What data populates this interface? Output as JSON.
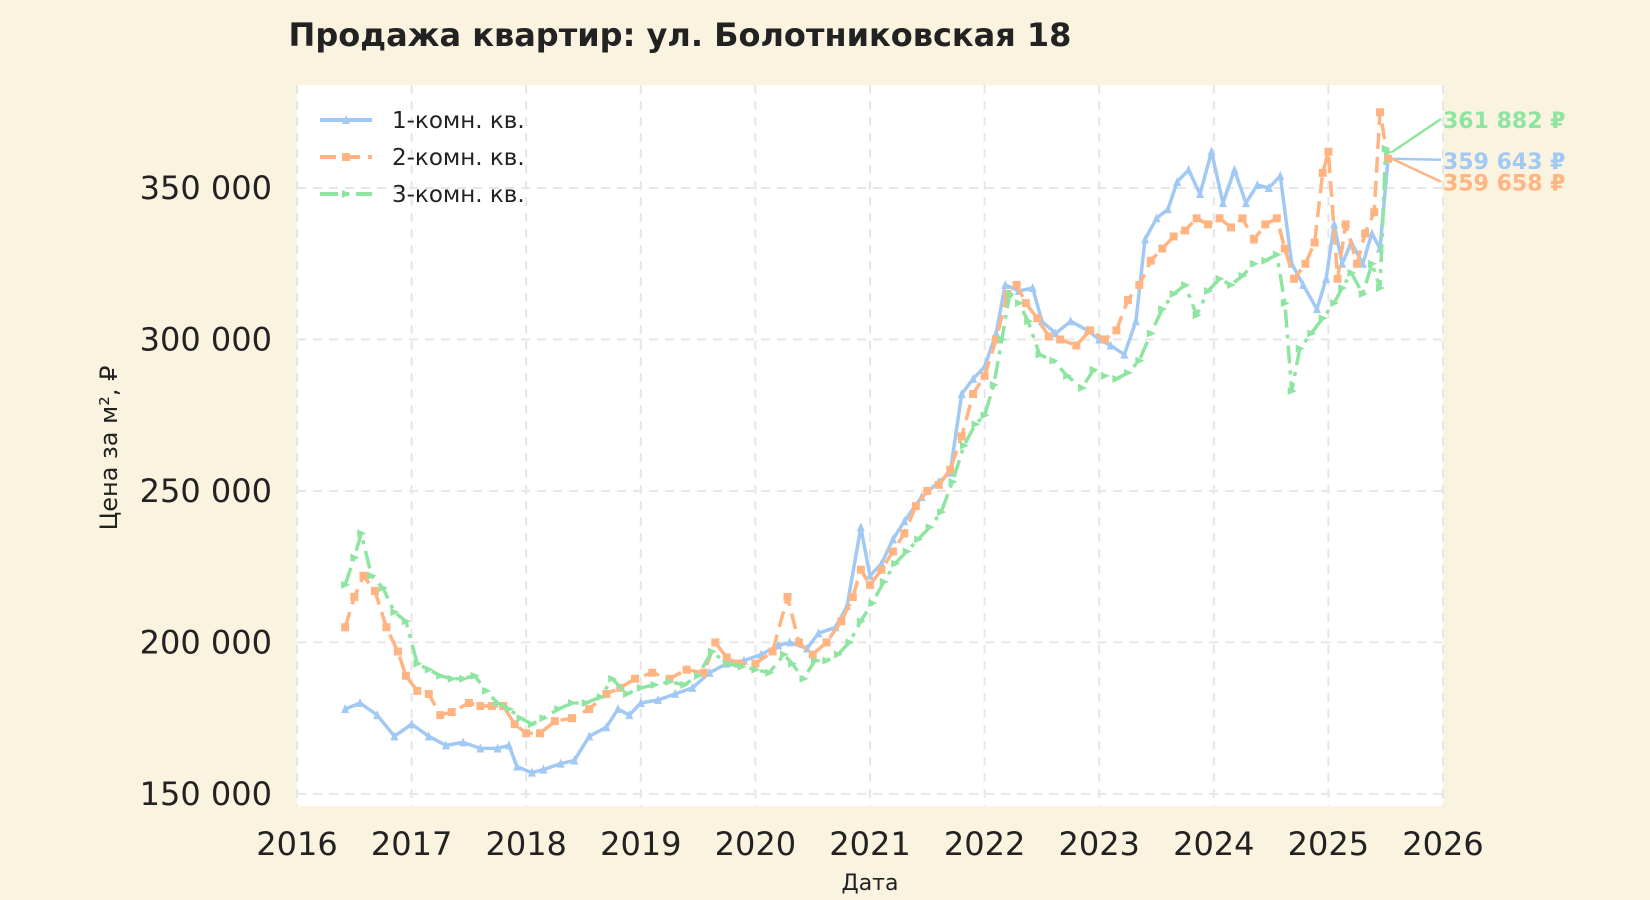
{
  "chart_data": {
    "type": "line",
    "title": "Продажа квартир: ул. Болотниковская 18",
    "xlabel": "Дата",
    "ylabel": "Цена за м², ₽",
    "xlim": [
      2016,
      2026
    ],
    "ylim": [
      146000,
      384000
    ],
    "x_ticks": [
      "2016",
      "2017",
      "2018",
      "2019",
      "2020",
      "2021",
      "2022",
      "2023",
      "2024",
      "2025",
      "2026"
    ],
    "y_ticks": [
      {
        "value": 150000,
        "label": "150 000"
      },
      {
        "value": 200000,
        "label": "200 000"
      },
      {
        "value": 250000,
        "label": "250 000"
      },
      {
        "value": 300000,
        "label": "300 000"
      },
      {
        "value": 350000,
        "label": "350 000"
      }
    ],
    "grid": true,
    "legend_position": "top-left",
    "plot_background": "#ffffff",
    "page_background": "#faf3e0",
    "series": [
      {
        "name": "1-комн. кв.",
        "color": "#a1c9f4",
        "dash": "solid",
        "marker": "triangle-up",
        "last_value_label": "359 643 ₽",
        "points": [
          [
            2016.42,
            178000
          ],
          [
            2016.55,
            180000
          ],
          [
            2016.7,
            176000
          ],
          [
            2016.85,
            169000
          ],
          [
            2017.0,
            173000
          ],
          [
            2017.15,
            169000
          ],
          [
            2017.3,
            166000
          ],
          [
            2017.45,
            167000
          ],
          [
            2017.6,
            165000
          ],
          [
            2017.75,
            165000
          ],
          [
            2017.85,
            166000
          ],
          [
            2017.92,
            159000
          ],
          [
            2018.05,
            157000
          ],
          [
            2018.15,
            158000
          ],
          [
            2018.3,
            160000
          ],
          [
            2018.42,
            161000
          ],
          [
            2018.55,
            169000
          ],
          [
            2018.7,
            172000
          ],
          [
            2018.8,
            178000
          ],
          [
            2018.9,
            176000
          ],
          [
            2019.0,
            180000
          ],
          [
            2019.15,
            181000
          ],
          [
            2019.3,
            183000
          ],
          [
            2019.45,
            185000
          ],
          [
            2019.6,
            190000
          ],
          [
            2019.75,
            193000
          ],
          [
            2019.9,
            194000
          ],
          [
            2020.05,
            196000
          ],
          [
            2020.2,
            199000
          ],
          [
            2020.3,
            200000
          ],
          [
            2020.45,
            198000
          ],
          [
            2020.55,
            203000
          ],
          [
            2020.7,
            205000
          ],
          [
            2020.8,
            212000
          ],
          [
            2020.92,
            238000
          ],
          [
            2021.0,
            222000
          ],
          [
            2021.1,
            226000
          ],
          [
            2021.2,
            234000
          ],
          [
            2021.3,
            240000
          ],
          [
            2021.45,
            248000
          ],
          [
            2021.6,
            253000
          ],
          [
            2021.7,
            256000
          ],
          [
            2021.8,
            282000
          ],
          [
            2021.9,
            287000
          ],
          [
            2022.0,
            291000
          ],
          [
            2022.1,
            302000
          ],
          [
            2022.18,
            318000
          ],
          [
            2022.3,
            316000
          ],
          [
            2022.42,
            317000
          ],
          [
            2022.5,
            306000
          ],
          [
            2022.62,
            302000
          ],
          [
            2022.75,
            306000
          ],
          [
            2022.9,
            303000
          ],
          [
            2023.0,
            300000
          ],
          [
            2023.1,
            298000
          ],
          [
            2023.22,
            295000
          ],
          [
            2023.32,
            306000
          ],
          [
            2023.4,
            333000
          ],
          [
            2023.5,
            340000
          ],
          [
            2023.6,
            343000
          ],
          [
            2023.68,
            352000
          ],
          [
            2023.78,
            356000
          ],
          [
            2023.88,
            348000
          ],
          [
            2023.98,
            362000
          ],
          [
            2024.08,
            345000
          ],
          [
            2024.18,
            356000
          ],
          [
            2024.28,
            345000
          ],
          [
            2024.38,
            351000
          ],
          [
            2024.48,
            350000
          ],
          [
            2024.58,
            354000
          ],
          [
            2024.68,
            325000
          ],
          [
            2024.78,
            318000
          ],
          [
            2024.9,
            310000
          ],
          [
            2024.98,
            320000
          ],
          [
            2025.05,
            338000
          ],
          [
            2025.12,
            325000
          ],
          [
            2025.2,
            332000
          ],
          [
            2025.3,
            325000
          ],
          [
            2025.38,
            335000
          ],
          [
            2025.45,
            330000
          ],
          [
            2025.52,
            359643
          ]
        ]
      },
      {
        "name": "2-комн. кв.",
        "color": "#ffb482",
        "dash": "dashed",
        "marker": "square",
        "last_value_label": "359 658 ₽",
        "points": [
          [
            2016.42,
            205000
          ],
          [
            2016.5,
            215000
          ],
          [
            2016.58,
            222000
          ],
          [
            2016.68,
            217000
          ],
          [
            2016.78,
            205000
          ],
          [
            2016.88,
            197000
          ],
          [
            2016.95,
            189000
          ],
          [
            2017.05,
            184000
          ],
          [
            2017.15,
            183000
          ],
          [
            2017.25,
            176000
          ],
          [
            2017.35,
            177000
          ],
          [
            2017.5,
            180000
          ],
          [
            2017.6,
            179000
          ],
          [
            2017.7,
            179000
          ],
          [
            2017.8,
            179000
          ],
          [
            2017.9,
            173000
          ],
          [
            2018.0,
            170000
          ],
          [
            2018.12,
            170000
          ],
          [
            2018.25,
            174000
          ],
          [
            2018.4,
            175000
          ],
          [
            2018.55,
            178000
          ],
          [
            2018.7,
            183000
          ],
          [
            2018.82,
            185000
          ],
          [
            2018.95,
            188000
          ],
          [
            2019.1,
            190000
          ],
          [
            2019.25,
            188000
          ],
          [
            2019.4,
            191000
          ],
          [
            2019.55,
            190000
          ],
          [
            2019.65,
            200000
          ],
          [
            2019.75,
            195000
          ],
          [
            2019.85,
            193000
          ],
          [
            2020.0,
            193000
          ],
          [
            2020.15,
            197000
          ],
          [
            2020.28,
            215000
          ],
          [
            2020.38,
            200000
          ],
          [
            2020.5,
            196000
          ],
          [
            2020.62,
            200000
          ],
          [
            2020.75,
            207000
          ],
          [
            2020.85,
            215000
          ],
          [
            2020.92,
            224000
          ],
          [
            2021.0,
            219000
          ],
          [
            2021.1,
            224000
          ],
          [
            2021.2,
            230000
          ],
          [
            2021.3,
            236000
          ],
          [
            2021.4,
            245000
          ],
          [
            2021.5,
            250000
          ],
          [
            2021.6,
            252000
          ],
          [
            2021.7,
            257000
          ],
          [
            2021.8,
            268000
          ],
          [
            2021.9,
            282000
          ],
          [
            2022.0,
            288000
          ],
          [
            2022.1,
            300000
          ],
          [
            2022.2,
            315000
          ],
          [
            2022.28,
            318000
          ],
          [
            2022.36,
            312000
          ],
          [
            2022.46,
            307000
          ],
          [
            2022.56,
            301000
          ],
          [
            2022.66,
            300000
          ],
          [
            2022.8,
            298000
          ],
          [
            2022.92,
            303000
          ],
          [
            2023.05,
            300000
          ],
          [
            2023.15,
            303000
          ],
          [
            2023.25,
            313000
          ],
          [
            2023.35,
            318000
          ],
          [
            2023.45,
            326000
          ],
          [
            2023.55,
            330000
          ],
          [
            2023.65,
            334000
          ],
          [
            2023.75,
            336000
          ],
          [
            2023.85,
            340000
          ],
          [
            2023.95,
            338000
          ],
          [
            2024.05,
            340000
          ],
          [
            2024.15,
            337000
          ],
          [
            2024.25,
            340000
          ],
          [
            2024.35,
            333000
          ],
          [
            2024.45,
            338000
          ],
          [
            2024.55,
            340000
          ],
          [
            2024.62,
            330000
          ],
          [
            2024.7,
            320000
          ],
          [
            2024.8,
            325000
          ],
          [
            2024.88,
            332000
          ],
          [
            2024.95,
            355000
          ],
          [
            2025.0,
            362000
          ],
          [
            2025.08,
            320000
          ],
          [
            2025.15,
            338000
          ],
          [
            2025.25,
            325000
          ],
          [
            2025.32,
            335000
          ],
          [
            2025.4,
            342000
          ],
          [
            2025.45,
            375000
          ],
          [
            2025.52,
            359658
          ]
        ]
      },
      {
        "name": "3-комн. кв.",
        "color": "#8de5a1",
        "dash": "dashdot",
        "marker": "triangle-right",
        "last_value_label": "361 882 ₽",
        "points": [
          [
            2016.42,
            219000
          ],
          [
            2016.5,
            228000
          ],
          [
            2016.56,
            236000
          ],
          [
            2016.65,
            222000
          ],
          [
            2016.75,
            218000
          ],
          [
            2016.85,
            210000
          ],
          [
            2016.95,
            207000
          ],
          [
            2017.05,
            193000
          ],
          [
            2017.15,
            191000
          ],
          [
            2017.25,
            189000
          ],
          [
            2017.35,
            188000
          ],
          [
            2017.45,
            188000
          ],
          [
            2017.55,
            189000
          ],
          [
            2017.65,
            184000
          ],
          [
            2017.75,
            180000
          ],
          [
            2017.85,
            178000
          ],
          [
            2017.95,
            175000
          ],
          [
            2018.05,
            173000
          ],
          [
            2018.15,
            175000
          ],
          [
            2018.28,
            178000
          ],
          [
            2018.4,
            180000
          ],
          [
            2018.52,
            180000
          ],
          [
            2018.65,
            182000
          ],
          [
            2018.75,
            188000
          ],
          [
            2018.88,
            183000
          ],
          [
            2019.0,
            185000
          ],
          [
            2019.12,
            186000
          ],
          [
            2019.25,
            187000
          ],
          [
            2019.38,
            186000
          ],
          [
            2019.5,
            189000
          ],
          [
            2019.62,
            197000
          ],
          [
            2019.75,
            193000
          ],
          [
            2019.88,
            192000
          ],
          [
            2020.0,
            191000
          ],
          [
            2020.12,
            190000
          ],
          [
            2020.25,
            196000
          ],
          [
            2020.32,
            193000
          ],
          [
            2020.42,
            188000
          ],
          [
            2020.52,
            194000
          ],
          [
            2020.62,
            194000
          ],
          [
            2020.72,
            196000
          ],
          [
            2020.82,
            200000
          ],
          [
            2020.92,
            207000
          ],
          [
            2021.02,
            213000
          ],
          [
            2021.12,
            220000
          ],
          [
            2021.22,
            226000
          ],
          [
            2021.32,
            230000
          ],
          [
            2021.42,
            234000
          ],
          [
            2021.52,
            238000
          ],
          [
            2021.62,
            243000
          ],
          [
            2021.72,
            253000
          ],
          [
            2021.82,
            265000
          ],
          [
            2021.92,
            272000
          ],
          [
            2022.0,
            275000
          ],
          [
            2022.08,
            285000
          ],
          [
            2022.15,
            300000
          ],
          [
            2022.22,
            315000
          ],
          [
            2022.3,
            312000
          ],
          [
            2022.38,
            306000
          ],
          [
            2022.48,
            295000
          ],
          [
            2022.6,
            293000
          ],
          [
            2022.72,
            288000
          ],
          [
            2022.85,
            284000
          ],
          [
            2022.95,
            290000
          ],
          [
            2023.05,
            288000
          ],
          [
            2023.15,
            287000
          ],
          [
            2023.25,
            289000
          ],
          [
            2023.35,
            293000
          ],
          [
            2023.45,
            302000
          ],
          [
            2023.55,
            310000
          ],
          [
            2023.65,
            315000
          ],
          [
            2023.75,
            318000
          ],
          [
            2023.85,
            308000
          ],
          [
            2023.95,
            316000
          ],
          [
            2024.05,
            320000
          ],
          [
            2024.15,
            318000
          ],
          [
            2024.25,
            321000
          ],
          [
            2024.35,
            325000
          ],
          [
            2024.45,
            326000
          ],
          [
            2024.55,
            328000
          ],
          [
            2024.62,
            312000
          ],
          [
            2024.68,
            283000
          ],
          [
            2024.75,
            297000
          ],
          [
            2024.85,
            302000
          ],
          [
            2024.95,
            307000
          ],
          [
            2025.05,
            312000
          ],
          [
            2025.12,
            317000
          ],
          [
            2025.2,
            322000
          ],
          [
            2025.3,
            315000
          ],
          [
            2025.38,
            325000
          ],
          [
            2025.45,
            317000
          ],
          [
            2025.5,
            363000
          ],
          [
            2025.52,
            361882
          ]
        ]
      }
    ]
  }
}
